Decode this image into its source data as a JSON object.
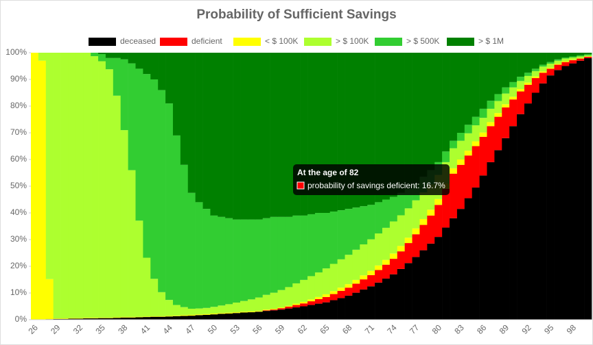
{
  "chart_data": {
    "type": "stacked_bar",
    "title": "Probability of Sufficient Savings",
    "categories": [
      26,
      null,
      null,
      29,
      null,
      null,
      32,
      null,
      null,
      35,
      null,
      null,
      38,
      null,
      null,
      41,
      null,
      null,
      44,
      null,
      null,
      47,
      null,
      null,
      50,
      null,
      null,
      53,
      null,
      null,
      56,
      null,
      null,
      59,
      null,
      null,
      62,
      null,
      null,
      65,
      null,
      null,
      68,
      null,
      null,
      71,
      null,
      null,
      74,
      null,
      null,
      77,
      null,
      null,
      80,
      null,
      null,
      83,
      null,
      null,
      86,
      null,
      null,
      89,
      null,
      null,
      92,
      null,
      null,
      95,
      null,
      null,
      98,
      null,
      null
    ],
    "series": [
      {
        "name": "deceased",
        "color": "#000000",
        "values": [
          0,
          0,
          0.2,
          0.3,
          0.3,
          0.4,
          0.4,
          0.5,
          0.5,
          0.6,
          0.6,
          0.7,
          0.8,
          0.8,
          0.9,
          1,
          1.1,
          1.1,
          1.2,
          1.3,
          1.4,
          1.5,
          1.7,
          1.8,
          2,
          2.2,
          2.3,
          2.5,
          2.7,
          2.8,
          3,
          3.3,
          3.5,
          3.8,
          4.2,
          4.6,
          5,
          5.5,
          6,
          6.5,
          7.3,
          8.1,
          9,
          10.1,
          11.3,
          12.5,
          13.9,
          15.4,
          17,
          19,
          21.2,
          23.5,
          26,
          28.5,
          31,
          34.5,
          38,
          41.5,
          45.5,
          49.5,
          54,
          59,
          63.5,
          68,
          72.5,
          77,
          81,
          85,
          88.5,
          91.5,
          93.5,
          95,
          96,
          97,
          98
        ]
      },
      {
        "name": "deficient",
        "color": "#ff0000",
        "values": [
          0,
          0,
          0,
          0,
          0,
          0,
          0,
          0,
          0,
          0,
          0,
          0,
          0,
          0,
          0,
          0,
          0,
          0,
          0,
          0,
          0,
          0,
          0,
          0,
          0,
          0,
          0,
          0,
          0,
          0,
          0,
          0.2,
          0.3,
          0.5,
          0.7,
          0.9,
          1.1,
          1.4,
          1.7,
          2,
          2.3,
          2.7,
          3,
          3.4,
          3.8,
          4.2,
          4.7,
          5.2,
          5.8,
          6.6,
          7.5,
          8.5,
          9.5,
          10.5,
          12,
          14.5,
          16.7,
          16.5,
          16,
          15.5,
          14.5,
          13.5,
          12.5,
          11.5,
          10,
          8.5,
          7,
          5.5,
          4,
          2.5,
          2,
          1.5,
          1.2,
          0.8,
          0.5
        ]
      },
      {
        "name": "< $ 100K",
        "color": "#ffff00",
        "values": [
          100,
          97,
          15,
          0.2,
          0.2,
          0.2,
          0.2,
          0.2,
          0.2,
          0.2,
          0.2,
          0.2,
          0.2,
          0.2,
          0.2,
          0.2,
          0.2,
          0.2,
          0.2,
          0.2,
          0.3,
          0.3,
          0.3,
          0.3,
          0.3,
          0.3,
          0.3,
          0.3,
          0.3,
          0.3,
          0.3,
          0.3,
          0.3,
          0.3,
          0.3,
          0.5,
          0.6,
          0.7,
          0.8,
          1,
          1.1,
          1.2,
          1.3,
          1.4,
          1.5,
          1.6,
          1.7,
          1.8,
          2,
          2,
          2,
          2.2,
          2.2,
          2.2,
          2.2,
          2,
          2,
          2,
          1.8,
          1.8,
          1.6,
          1.5,
          1.4,
          1.2,
          1,
          0.9,
          0.8,
          0.6,
          0.5,
          0.4,
          0.3,
          0.3,
          0.2,
          0.2,
          0.1
        ]
      },
      {
        "name": "> $ 100K",
        "color": "#adff2f",
        "values": [
          0,
          3,
          84.8,
          99.5,
          99.5,
          99.4,
          99.4,
          99.3,
          98,
          96,
          93,
          83,
          70,
          55,
          36,
          22,
          14,
          9,
          6,
          4,
          3,
          2.3,
          2.2,
          2.3,
          2.5,
          2.8,
          3.2,
          3.6,
          4,
          4.5,
          5,
          5.5,
          6,
          6.5,
          7,
          7.6,
          8.2,
          8.7,
          9.2,
          9.7,
          10.2,
          10.6,
          11,
          11.3,
          11.6,
          11.8,
          12,
          12,
          12,
          11.5,
          11,
          10.5,
          10,
          9.5,
          9,
          8,
          7.5,
          7,
          6.5,
          6,
          5.5,
          5,
          4.5,
          4,
          3.5,
          3,
          2.5,
          2,
          1.8,
          1.5,
          1.2,
          1,
          0.8,
          0.6,
          0.4
        ]
      },
      {
        "name": "> $ 500K",
        "color": "#32cd32",
        "values": [
          0,
          0,
          0,
          0,
          0,
          0,
          0,
          0,
          1.3,
          2.7,
          4.2,
          14.1,
          26.5,
          40,
          56.9,
          68.8,
          74.7,
          75.7,
          73.6,
          63.5,
          53.3,
          43.4,
          39.8,
          37.1,
          34.2,
          33.2,
          32.2,
          31.1,
          30.5,
          29.9,
          29.2,
          28.7,
          28.4,
          27.4,
          26.3,
          25.4,
          24.1,
          23.2,
          22.3,
          20.8,
          19.6,
          18.4,
          17.2,
          15.8,
          14.3,
          12.9,
          11.7,
          10.6,
          9.2,
          8.4,
          7.3,
          6.3,
          5.8,
          5.3,
          4.8,
          4,
          2.8,
          3,
          3.2,
          3.2,
          3.4,
          3,
          2.6,
          2.3,
          2,
          1.6,
          1.2,
          0.9,
          0.7,
          0.6,
          0.5,
          0.4,
          0.4,
          0.4,
          0.4
        ]
      },
      {
        "name": "> $ 1M",
        "color": "#008000",
        "values": [
          0,
          0,
          0,
          0,
          0,
          0,
          0,
          0,
          0,
          0.5,
          2,
          2,
          2.5,
          4,
          6,
          8,
          10,
          14,
          19,
          31,
          42,
          52.5,
          56,
          58.5,
          61,
          61.5,
          62,
          62.5,
          62.5,
          62.5,
          62.5,
          62,
          61.5,
          61.5,
          61.5,
          61,
          61,
          60.5,
          60,
          60,
          59.5,
          59,
          58.5,
          58,
          57.5,
          57,
          56,
          55,
          54,
          52.5,
          51,
          49,
          46.5,
          44,
          41,
          37,
          33,
          30,
          27,
          24,
          21,
          18,
          15.5,
          13,
          11,
          9,
          7.5,
          6,
          4.5,
          3.5,
          2.5,
          1.8,
          1.4,
          1,
          0.6
        ]
      }
    ],
    "ylim": [
      0,
      100
    ],
    "yticks": [
      {
        "value": 0,
        "label": "0%"
      },
      {
        "value": 10,
        "label": "10%"
      },
      {
        "value": 20,
        "label": "20%"
      },
      {
        "value": 30,
        "label": "30%"
      },
      {
        "value": 40,
        "label": "40%"
      },
      {
        "value": 50,
        "label": "50%"
      },
      {
        "value": 60,
        "label": "60%"
      },
      {
        "value": 70,
        "label": "70%"
      },
      {
        "value": 80,
        "label": "80%"
      },
      {
        "value": 90,
        "label": "90%"
      },
      {
        "value": 100,
        "label": "100%"
      }
    ],
    "legend": "top",
    "tooltip": {
      "title": "At the age of 82",
      "body": "probability of savings deficient: 16.7%",
      "category_index": 56,
      "series_index": 1
    }
  }
}
